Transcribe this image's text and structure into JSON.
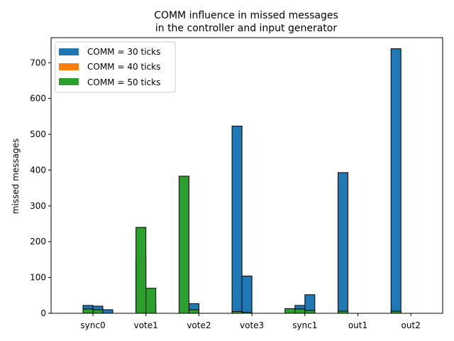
{
  "chart_data": {
    "type": "bar",
    "title": [
      "COMM influence in missed messages",
      "in the controller and input generator"
    ],
    "xlabel": "",
    "ylabel": "missed messages",
    "ylim": [
      0,
      770
    ],
    "yticks": [
      0,
      100,
      200,
      300,
      400,
      500,
      600,
      700
    ],
    "grid": false,
    "legend_position": "top-left",
    "categories": [
      "sync0",
      "vote1",
      "vote2",
      "vote3",
      "sync1",
      "out1",
      "out2"
    ],
    "bars_per_category": 4,
    "series": [
      {
        "name": "COMM = 30 ticks",
        "color": "#1f77b4",
        "values": [
          [
            0,
            22,
            20,
            10
          ],
          [
            0,
            152,
            22,
            0
          ],
          [
            0,
            27,
            0,
            0
          ],
          [
            523,
            104,
            0,
            0
          ],
          [
            0,
            22,
            52,
            0
          ],
          [
            393,
            0,
            0,
            0
          ],
          [
            739,
            0,
            0,
            0
          ]
        ]
      },
      {
        "name": "COMM = 40 ticks",
        "color": "#ff7f0e",
        "values": [
          [
            0,
            0,
            0,
            0
          ],
          [
            0,
            0,
            0,
            0
          ],
          [
            0,
            0,
            0,
            0
          ],
          [
            0,
            0,
            0,
            0
          ],
          [
            0,
            0,
            0,
            0
          ],
          [
            0,
            0,
            0,
            0
          ],
          [
            0,
            0,
            0,
            0
          ]
        ]
      },
      {
        "name": "COMM = 50 ticks",
        "color": "#2ca02c",
        "values": [
          [
            0,
            12,
            10,
            0
          ],
          [
            0,
            240,
            70,
            0
          ],
          [
            383,
            10,
            0,
            0
          ],
          [
            5,
            3,
            0,
            0
          ],
          [
            13,
            12,
            8,
            0
          ],
          [
            6,
            0,
            0,
            0
          ],
          [
            6,
            0,
            0,
            0
          ]
        ]
      }
    ]
  },
  "legend": [
    {
      "label": "COMM",
      "suffix": "= 30 ticks",
      "color": "#1f77b4"
    },
    {
      "label": "COMM",
      "suffix": "= 40 ticks",
      "color": "#ff7f0e"
    },
    {
      "label": "COMM",
      "suffix": "= 50 ticks",
      "color": "#2ca02c"
    }
  ]
}
